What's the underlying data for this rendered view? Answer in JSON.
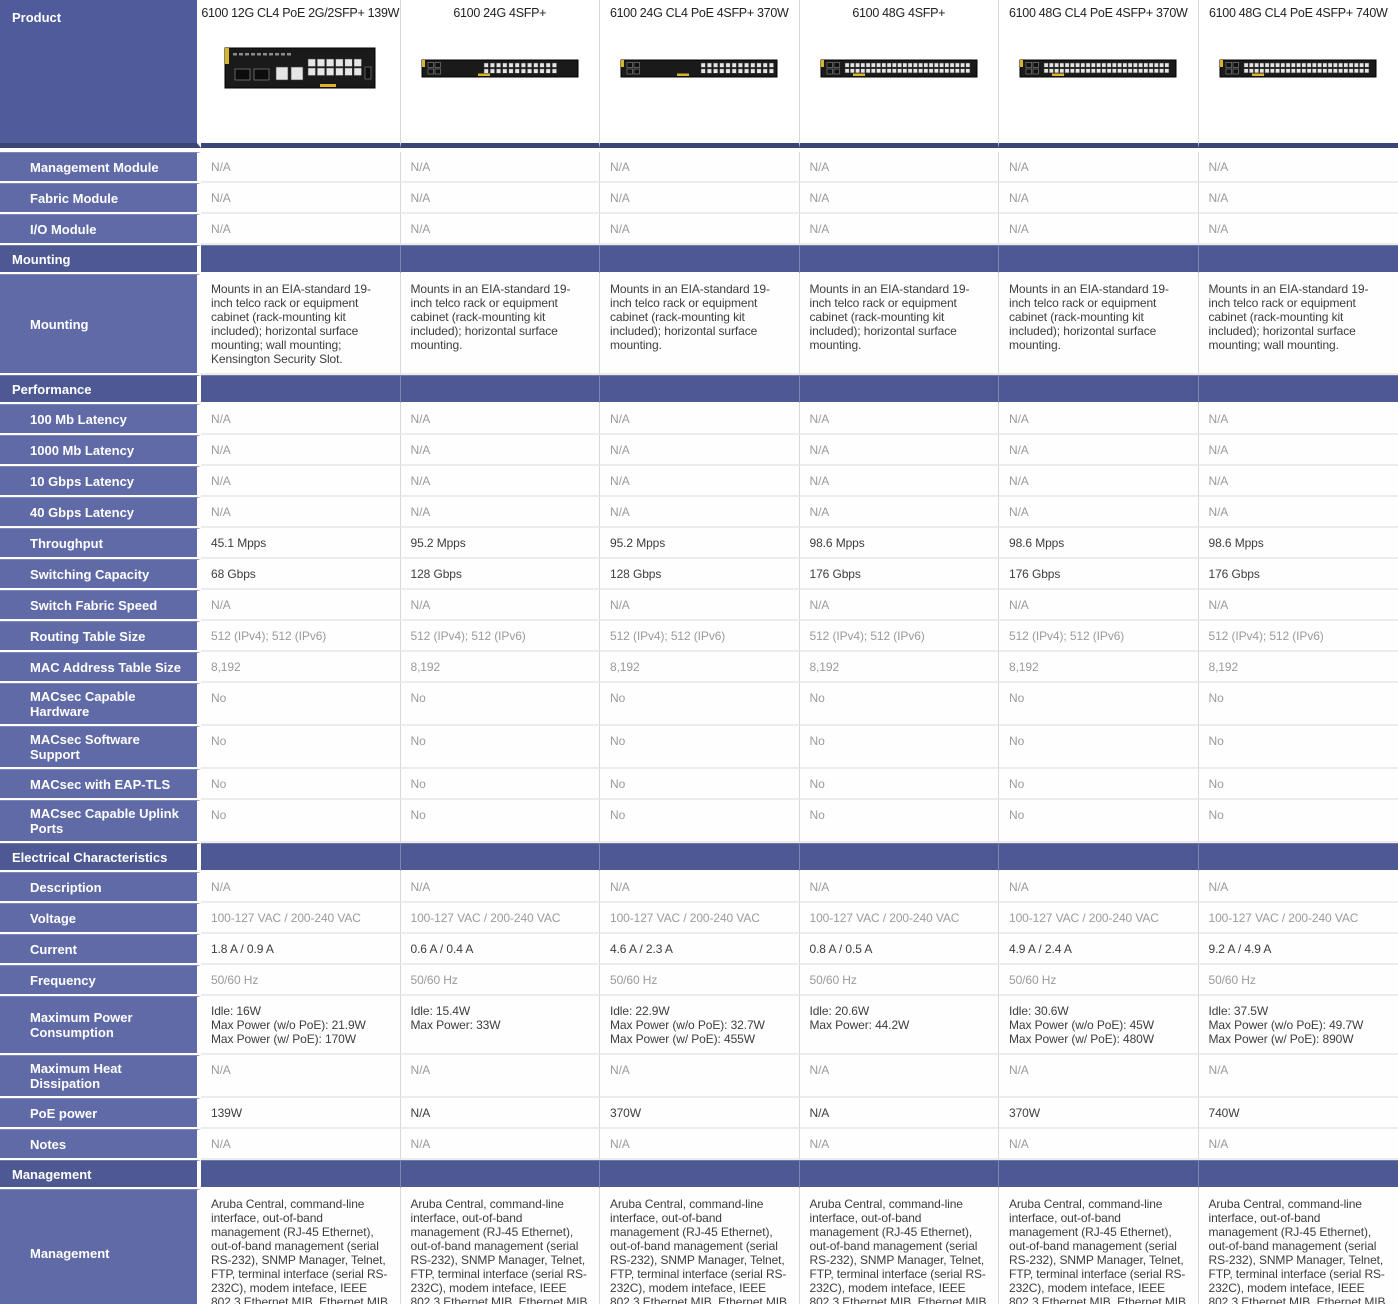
{
  "colors": {
    "corner_header_bg": "#4f5b9a",
    "section_header_bg": "#4e5994",
    "row_label_bg": "#5f6aa7",
    "header_divider": "#3a4577",
    "value_dark": "#3d3d3d",
    "value_muted": "#9b9b9b",
    "switch_body": "#1a1a1a",
    "switch_accent_yellow": "#d9b529"
  },
  "table": {
    "corner_label": "Product",
    "products": [
      {
        "name": "6100 12G CL4 PoE 2G/2SFP+ 139W",
        "image": {
          "kind": "switch-12g"
        }
      },
      {
        "name": "6100 24G 4SFP+",
        "image": {
          "kind": "switch-24g"
        }
      },
      {
        "name": "6100 24G CL4 PoE 4SFP+ 370W",
        "image": {
          "kind": "switch-24g-poe"
        }
      },
      {
        "name": "6100 48G 4SFP+",
        "image": {
          "kind": "switch-48g"
        }
      },
      {
        "name": "6100 48G CL4 PoE 4SFP+ 370W",
        "image": {
          "kind": "switch-48g"
        }
      },
      {
        "name": "6100 48G CL4 PoE 4SFP+ 740W",
        "image": {
          "kind": "switch-48g"
        }
      }
    ],
    "rows": [
      {
        "type": "row",
        "label": "Management Module",
        "tone": "muted",
        "values": [
          "N/A",
          "N/A",
          "N/A",
          "N/A",
          "N/A",
          "N/A"
        ]
      },
      {
        "type": "row",
        "label": "Fabric Module",
        "tone": "muted",
        "values": [
          "N/A",
          "N/A",
          "N/A",
          "N/A",
          "N/A",
          "N/A"
        ]
      },
      {
        "type": "row",
        "label": "I/O Module",
        "tone": "muted",
        "values": [
          "N/A",
          "N/A",
          "N/A",
          "N/A",
          "N/A",
          "N/A"
        ]
      },
      {
        "type": "section",
        "label": "Mounting"
      },
      {
        "type": "row",
        "label": "Mounting",
        "tone": "dark",
        "values": [
          "Mounts in an EIA-standard 19-inch telco rack or equipment cabinet (rack-mounting kit included); horizontal surface mounting; wall mounting; Kensington Security Slot.",
          "Mounts in an EIA-standard 19-inch telco rack or equipment cabinet (rack-mounting kit included); horizontal surface mounting.",
          "Mounts in an EIA-standard 19-inch telco rack or equipment cabinet (rack-mounting kit included); horizontal surface mounting.",
          "Mounts in an EIA-standard 19-inch telco rack or equipment cabinet (rack-mounting kit included); horizontal surface mounting.",
          "Mounts in an EIA-standard 19-inch telco rack or equipment cabinet (rack-mounting kit included); horizontal surface mounting.",
          "Mounts in an EIA-standard 19-inch telco rack or equipment cabinet (rack-mounting kit included); horizontal surface mounting; wall mounting."
        ]
      },
      {
        "type": "section",
        "label": "Performance"
      },
      {
        "type": "row",
        "label": "100 Mb Latency",
        "tone": "muted",
        "values": [
          "N/A",
          "N/A",
          "N/A",
          "N/A",
          "N/A",
          "N/A"
        ]
      },
      {
        "type": "row",
        "label": "1000 Mb Latency",
        "tone": "muted",
        "values": [
          "N/A",
          "N/A",
          "N/A",
          "N/A",
          "N/A",
          "N/A"
        ]
      },
      {
        "type": "row",
        "label": "10 Gbps Latency",
        "tone": "muted",
        "values": [
          "N/A",
          "N/A",
          "N/A",
          "N/A",
          "N/A",
          "N/A"
        ]
      },
      {
        "type": "row",
        "label": "40 Gbps Latency",
        "tone": "muted",
        "values": [
          "N/A",
          "N/A",
          "N/A",
          "N/A",
          "N/A",
          "N/A"
        ]
      },
      {
        "type": "row",
        "label": "Throughput",
        "tone": "dark",
        "values": [
          "45.1 Mpps",
          "95.2 Mpps",
          "95.2 Mpps",
          "98.6 Mpps",
          "98.6 Mpps",
          "98.6 Mpps"
        ]
      },
      {
        "type": "row",
        "label": "Switching Capacity",
        "tone": "dark",
        "values": [
          "68 Gbps",
          "128 Gbps",
          "128 Gbps",
          "176 Gbps",
          "176 Gbps",
          "176 Gbps"
        ]
      },
      {
        "type": "row",
        "label": "Switch Fabric Speed",
        "tone": "muted",
        "values": [
          "N/A",
          "N/A",
          "N/A",
          "N/A",
          "N/A",
          "N/A"
        ]
      },
      {
        "type": "row",
        "label": "Routing Table Size",
        "tone": "muted",
        "values": [
          "512 (IPv4); 512 (IPv6)",
          "512 (IPv4); 512 (IPv6)",
          "512 (IPv4); 512 (IPv6)",
          "512 (IPv4); 512 (IPv6)",
          "512 (IPv4); 512 (IPv6)",
          "512 (IPv4); 512 (IPv6)"
        ]
      },
      {
        "type": "row",
        "label": "MAC Address Table Size",
        "tone": "muted",
        "values": [
          "8,192",
          "8,192",
          "8,192",
          "8,192",
          "8,192",
          "8,192"
        ]
      },
      {
        "type": "row",
        "label": "MACsec Capable Hardware",
        "tone": "muted",
        "values": [
          "No",
          "No",
          "No",
          "No",
          "No",
          "No"
        ]
      },
      {
        "type": "row",
        "label": "MACsec Software Support",
        "tone": "muted",
        "values": [
          "No",
          "No",
          "No",
          "No",
          "No",
          "No"
        ]
      },
      {
        "type": "row",
        "label": "MACsec with EAP-TLS",
        "tone": "muted",
        "values": [
          "No",
          "No",
          "No",
          "No",
          "No",
          "No"
        ]
      },
      {
        "type": "row",
        "label": "MACsec Capable Uplink Ports",
        "tone": "muted",
        "values": [
          "No",
          "No",
          "No",
          "No",
          "No",
          "No"
        ]
      },
      {
        "type": "section",
        "label": "Electrical Characteristics"
      },
      {
        "type": "row",
        "label": "Description",
        "tone": "muted",
        "values": [
          "N/A",
          "N/A",
          "N/A",
          "N/A",
          "N/A",
          "N/A"
        ]
      },
      {
        "type": "row",
        "label": "Voltage",
        "tone": "muted",
        "values": [
          "100-127 VAC / 200-240 VAC",
          "100-127 VAC / 200-240 VAC",
          "100-127 VAC / 200-240 VAC",
          "100-127 VAC / 200-240 VAC",
          "100-127 VAC / 200-240 VAC",
          "100-127 VAC / 200-240 VAC"
        ]
      },
      {
        "type": "row",
        "label": "Current",
        "tone": "dark",
        "values": [
          "1.8 A / 0.9 A",
          "0.6 A / 0.4 A",
          "4.6 A / 2.3 A",
          "0.8 A / 0.5 A",
          "4.9 A / 2.4 A",
          "9.2 A / 4.9 A"
        ]
      },
      {
        "type": "row",
        "label": "Frequency",
        "tone": "muted",
        "values": [
          "50/60 Hz",
          "50/60 Hz",
          "50/60 Hz",
          "50/60 Hz",
          "50/60 Hz",
          "50/60 Hz"
        ]
      },
      {
        "type": "row",
        "label": "Maximum Power Consumption",
        "tone": "dark",
        "values": [
          "Idle: 16W\nMax Power (w/o PoE): 21.9W\nMax Power (w/ PoE): 170W",
          "Idle: 15.4W\nMax Power: 33W",
          "Idle: 22.9W\nMax Power (w/o PoE): 32.7W\nMax Power (w/ PoE): 455W",
          "Idle: 20.6W\nMax Power: 44.2W",
          "Idle: 30.6W\nMax Power (w/o PoE): 45W\nMax Power (w/ PoE): 480W",
          "Idle: 37.5W\nMax Power (w/o PoE): 49.7W\nMax Power (w/ PoE): 890W"
        ]
      },
      {
        "type": "row",
        "label": "Maximum Heat Dissipation",
        "tone": "muted",
        "values": [
          "N/A",
          "N/A",
          "N/A",
          "N/A",
          "N/A",
          "N/A"
        ]
      },
      {
        "type": "row",
        "label": "PoE power",
        "tone": "dark",
        "values": [
          "139W",
          "N/A",
          "370W",
          "N/A",
          "370W",
          "740W"
        ]
      },
      {
        "type": "row",
        "label": "Notes",
        "tone": "muted",
        "values": [
          "N/A",
          "N/A",
          "N/A",
          "N/A",
          "N/A",
          "N/A"
        ]
      },
      {
        "type": "section",
        "label": "Management"
      },
      {
        "type": "row",
        "label": "Management",
        "tone": "dark",
        "values": [
          "Aruba Central, command-line interface, out-of-band management (RJ-45 Ethernet), out-of-band management (serial RS-232), SNMP Manager, Telnet, FTP, terminal interface (serial RS-232C), modem inteface, IEEE 802.3 Ethernet MIB, Ethernet MIB",
          "Aruba Central, command-line interface, out-of-band management (RJ-45 Ethernet), out-of-band management (serial RS-232), SNMP Manager, Telnet, FTP, terminal interface (serial RS-232C), modem inteface, IEEE 802.3 Ethernet MIB, Ethernet MIB",
          "Aruba Central, command-line interface, out-of-band management (RJ-45 Ethernet), out-of-band management (serial RS-232), SNMP Manager, Telnet, FTP, terminal interface (serial RS-232C), modem inteface, IEEE 802.3 Ethernet MIB, Ethernet MIB",
          "Aruba Central, command-line interface, out-of-band management (RJ-45 Ethernet), out-of-band management (serial RS-232), SNMP Manager, Telnet, FTP, terminal interface (serial RS-232C), modem inteface, IEEE 802.3 Ethernet MIB, Ethernet MIB",
          "Aruba Central, command-line interface, out-of-band management (RJ-45 Ethernet), out-of-band management (serial RS-232), SNMP Manager, Telnet, FTP, terminal interface (serial RS-232C), modem inteface, IEEE 802.3 Ethernet MIB, Ethernet MIB",
          "Aruba Central, command-line interface, out-of-band management (RJ-45 Ethernet), out-of-band management (serial RS-232), SNMP Manager, Telnet, FTP, terminal interface (serial RS-232C), modem inteface, IEEE 802.3 Ethernet MIB, Ethernet MIB"
        ]
      }
    ]
  }
}
